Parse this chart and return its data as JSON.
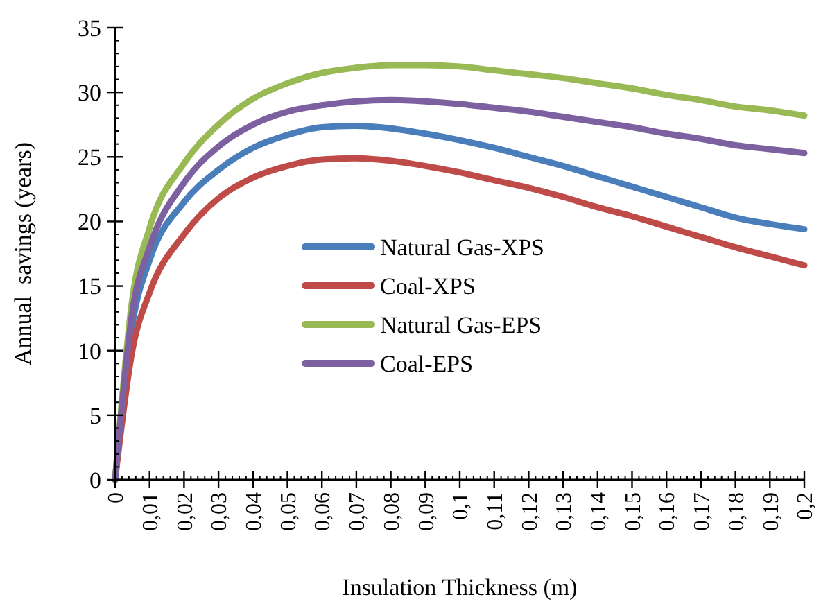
{
  "chart_data": {
    "type": "line",
    "xlabel": "Insulation Thickness (m)",
    "ylabel": "Annual  savings (years)",
    "x": [
      0,
      0.005,
      0.01,
      0.02,
      0.03,
      0.04,
      0.05,
      0.06,
      0.07,
      0.08,
      0.09,
      0.1,
      0.11,
      0.12,
      0.13,
      0.14,
      0.15,
      0.16,
      0.17,
      0.18,
      0.19,
      0.2
    ],
    "series": [
      {
        "name": "Natural Gas-XPS",
        "color": "#4a7ebb",
        "values": [
          0,
          12,
          17,
          21.5,
          24,
          25.7,
          26.7,
          27.3,
          27.4,
          27.2,
          26.8,
          26.3,
          25.7,
          25,
          24.3,
          23.5,
          22.7,
          21.9,
          21.1,
          20.3,
          19.8,
          19.4
        ]
      },
      {
        "name": "Coal-XPS",
        "color": "#be4b48",
        "values": [
          0,
          10,
          14.5,
          19,
          21.8,
          23.4,
          24.3,
          24.8,
          24.9,
          24.7,
          24.3,
          23.8,
          23.2,
          22.6,
          21.9,
          21.1,
          20.4,
          19.6,
          18.8,
          18,
          17.3,
          16.6
        ]
      },
      {
        "name": "Natural Gas-EPS",
        "color": "#98b954",
        "values": [
          0,
          14,
          19.5,
          24.5,
          27.5,
          29.5,
          30.7,
          31.5,
          31.9,
          32.1,
          32.1,
          32,
          31.7,
          31.4,
          31.1,
          30.7,
          30.3,
          29.8,
          29.4,
          28.9,
          28.6,
          28.2
        ]
      },
      {
        "name": "Coal-EPS",
        "color": "#7d60a0",
        "values": [
          0,
          13,
          18,
          23,
          25.8,
          27.5,
          28.5,
          29,
          29.3,
          29.4,
          29.3,
          29.1,
          28.8,
          28.5,
          28.1,
          27.7,
          27.3,
          26.8,
          26.4,
          25.9,
          25.6,
          25.3
        ]
      }
    ],
    "xlim": [
      0,
      0.2
    ],
    "xticks": [
      0,
      {
        "value": 0.01,
        "label": "0,01"
      },
      {
        "value": 0.02,
        "label": "0,02"
      },
      {
        "value": 0.03,
        "label": "0,03"
      },
      {
        "value": 0.04,
        "label": "0,04"
      },
      {
        "value": 0.05,
        "label": "0,05"
      },
      {
        "value": 0.06,
        "label": "0,06"
      },
      {
        "value": 0.07,
        "label": "0,07"
      },
      {
        "value": 0.08,
        "label": "0,08"
      },
      {
        "value": 0.09,
        "label": "0,09"
      },
      {
        "value": 0.1,
        "label": "0,1"
      },
      {
        "value": 0.11,
        "label": "0,11"
      },
      {
        "value": 0.12,
        "label": "0,12"
      },
      {
        "value": 0.13,
        "label": "0,13"
      },
      {
        "value": 0.14,
        "label": "0,14"
      },
      {
        "value": 0.15,
        "label": "0,15"
      },
      {
        "value": 0.16,
        "label": "0,16"
      },
      {
        "value": 0.17,
        "label": "0,17"
      },
      {
        "value": 0.18,
        "label": "0,18"
      },
      {
        "value": 0.19,
        "label": "0,19"
      },
      {
        "value": 0.2,
        "label": "0,2"
      }
    ],
    "ylim": [
      0,
      35
    ],
    "yticks": [
      0,
      5,
      10,
      15,
      20,
      25,
      30,
      35
    ],
    "legend": "center",
    "marker": "none",
    "line_style": "solid",
    "grid": false
  }
}
